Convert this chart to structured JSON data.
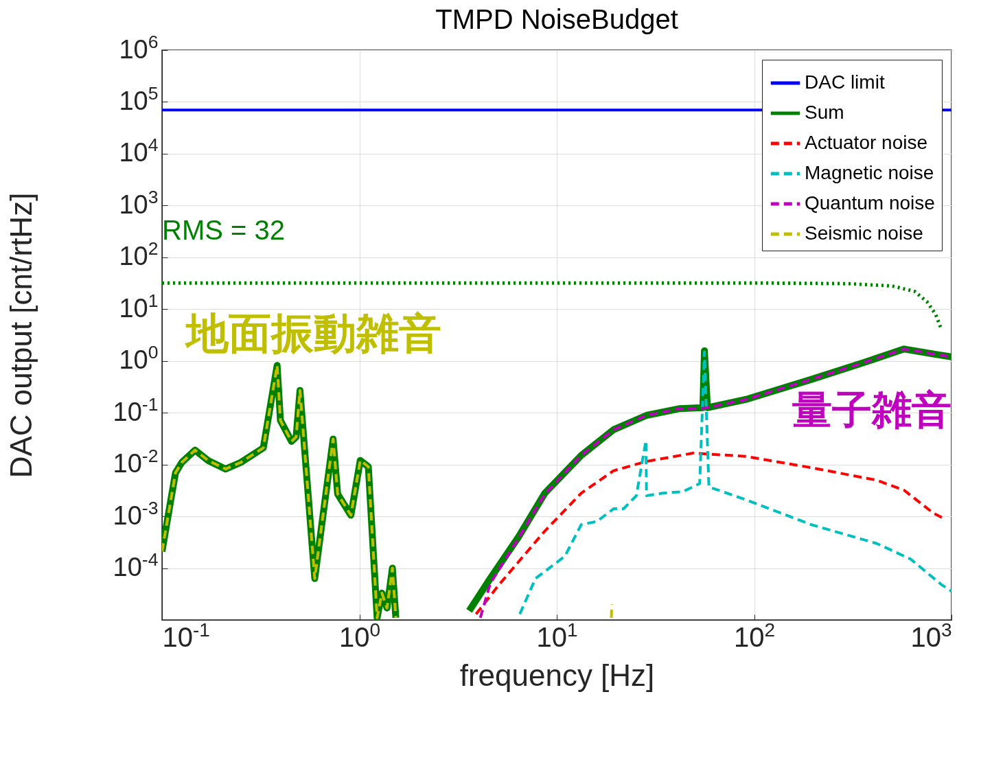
{
  "chart_data": {
    "type": "line",
    "title": "TMPD NoiseBudget",
    "xlabel": "frequency [Hz]",
    "ylabel": "DAC output [cnt/rtHz]",
    "log": "xy",
    "grid": true,
    "legend": "top right",
    "xlim": [
      0.1,
      1000
    ],
    "ylim": [
      1e-05,
      1000000
    ],
    "xticks": [
      {
        "value": 0.1,
        "label": "10$^{-1}$"
      },
      {
        "value": 1,
        "label": "10$^{0}$"
      },
      {
        "value": 10,
        "label": "10$^{1}$"
      },
      {
        "value": 100,
        "label": "10$^{2}$"
      },
      {
        "value": 1000,
        "label": "10$^{3}$"
      }
    ],
    "yticks": [
      {
        "value": 0.0001,
        "label": "10$^{-4}$"
      },
      {
        "value": 0.001,
        "label": "10$^{-3}$"
      },
      {
        "value": 0.01,
        "label": "10$^{-2}$"
      },
      {
        "value": 0.1,
        "label": "10$^{-1}$"
      },
      {
        "value": 1,
        "label": "10$^{0}$"
      },
      {
        "value": 10,
        "label": "10$^{1}$"
      },
      {
        "value": 100,
        "label": "10$^{2}$"
      },
      {
        "value": 1000,
        "label": "10$^{3}$"
      },
      {
        "value": 10000,
        "label": "10$^{4}$"
      },
      {
        "value": 100000,
        "label": "10$^{5}$"
      },
      {
        "value": 1000000,
        "label": "10$^{6}$"
      }
    ],
    "series": [
      {
        "name": "DAC limit",
        "color": "#0000ff",
        "line_style": "solid",
        "x": [
          0.1,
          1000
        ],
        "values": [
          70000,
          70000
        ]
      },
      {
        "name": "Sum",
        "color": "#008000",
        "line_style": "solid",
        "x": [
          0.1,
          0.117,
          0.126,
          0.147,
          0.171,
          0.21,
          0.251,
          0.326,
          0.383,
          0.398,
          0.453,
          0.478,
          0.5,
          0.594,
          0.65,
          0.736,
          0.776,
          0.906,
          1.01,
          1.11,
          1.23,
          1.3,
          1.38,
          1.47,
          1.53,
          2.5,
          3.6,
          4.6,
          6.4,
          8.7,
          13.3,
          19.4,
          28.5,
          42,
          55,
          56,
          58,
          90.5,
          195,
          347,
          575,
          810,
          1000
        ],
        "values": [
          0.00021,
          0.0069,
          0.011,
          0.019,
          0.012,
          0.0082,
          0.011,
          0.021,
          0.82,
          0.071,
          0.028,
          0.034,
          0.27,
          6.3e-05,
          0.00087,
          0.031,
          0.0027,
          0.00105,
          0.012,
          0.0091,
          1.1e-05,
          3.3e-05,
          1.7e-05,
          0.0001,
          1.1e-05,
          null,
          1.5e-05,
          6.3e-05,
          0.0004,
          0.0028,
          0.015,
          0.047,
          0.089,
          0.12,
          0.125,
          1.57,
          0.125,
          0.18,
          0.44,
          0.89,
          1.7,
          1.36,
          1.2
        ]
      },
      {
        "name": "Actuator noise",
        "color": "#ff0000",
        "line_style": "dashed",
        "x": [
          3.9,
          5.1,
          8.7,
          13.3,
          19.4,
          28.5,
          49,
          90.5,
          195,
          417,
          575,
          810,
          920
        ],
        "values": [
          1.3e-05,
          4.8e-05,
          0.00052,
          0.0028,
          0.0076,
          0.0115,
          0.0166,
          0.0144,
          0.0087,
          0.005,
          0.0032,
          0.00115,
          0.0009
        ]
      },
      {
        "name": "Magnetic noise",
        "color": "#00bfbf",
        "line_style": "dashed",
        "x": [
          6.5,
          7.8,
          9.1,
          11,
          13.3,
          16,
          19.4,
          21.8,
          25.3,
          28.3,
          28.5,
          34.5,
          43.6,
          53,
          56,
          59,
          90.5,
          195,
          417,
          620,
          890,
          1000
        ],
        "values": [
          1.3e-05,
          6.3e-05,
          9.8e-05,
          0.00017,
          0.00069,
          0.0008,
          0.0014,
          0.0014,
          0.0025,
          0.029,
          0.0025,
          0.0028,
          0.003,
          0.0043,
          1.5,
          0.0037,
          0.0021,
          0.00069,
          0.0003,
          0.00015,
          4.8e-05,
          3.6e-05
        ]
      },
      {
        "name": "Quantum noise",
        "color": "#bf00bf",
        "line_style": "dashed",
        "x": [
          4.1,
          4.6,
          6.4,
          8.7,
          13.3,
          19.4,
          28.5,
          42,
          55,
          58,
          90.5,
          195,
          347,
          575,
          810,
          1000
        ],
        "values": [
          1.1e-05,
          5e-05,
          0.00038,
          0.0027,
          0.015,
          0.047,
          0.089,
          0.12,
          0.122,
          0.125,
          0.18,
          0.44,
          0.89,
          1.7,
          1.36,
          1.2
        ]
      },
      {
        "name": "Seismic noise",
        "color": "#bfbf00",
        "line_style": "dashed",
        "x": [
          0.1,
          0.117,
          0.126,
          0.147,
          0.171,
          0.21,
          0.251,
          0.326,
          0.383,
          0.398,
          0.453,
          0.478,
          0.5,
          0.594,
          0.65,
          0.736,
          0.776,
          0.906,
          1.01,
          1.11,
          1.23,
          1.3,
          1.38,
          1.47,
          1.53,
          5,
          18.9,
          19
        ],
        "values": [
          0.00021,
          0.0069,
          0.011,
          0.019,
          0.012,
          0.0082,
          0.011,
          0.021,
          0.82,
          0.071,
          0.028,
          0.034,
          0.27,
          6.3e-05,
          0.00087,
          0.031,
          0.0027,
          0.00105,
          0.012,
          0.0091,
          1.1e-05,
          3.3e-05,
          1.7e-05,
          0.0001,
          1.1e-05,
          null,
          1.1e-05,
          2e-05
        ]
      },
      {
        "color": "#008000",
        "line_style": "dotted",
        "x": [
          0.1,
          100,
          300,
          500,
          650,
          750,
          830,
          880
        ],
        "values": [
          32,
          32,
          31,
          28,
          22,
          14,
          8,
          4.5
        ]
      }
    ],
    "annotations": [
      "RMS = 32",
      "地面振動雑音",
      "量子雑音"
    ]
  }
}
